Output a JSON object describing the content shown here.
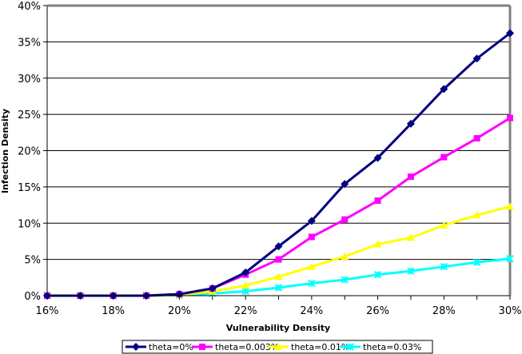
{
  "chart_data": {
    "type": "line",
    "title": "",
    "xlabel": "Vulnerability Density",
    "ylabel": "Infection Density",
    "x": [
      16,
      17,
      18,
      19,
      20,
      21,
      22,
      23,
      24,
      25,
      26,
      27,
      28,
      29,
      30
    ],
    "x_tick_labels": [
      "16%",
      "18%",
      "20%",
      "22%",
      "24%",
      "26%",
      "28%",
      "30%"
    ],
    "x_tick_values": [
      16,
      18,
      20,
      22,
      24,
      26,
      28,
      30
    ],
    "xlim": [
      16,
      30
    ],
    "y_tick_labels": [
      "0%",
      "5%",
      "10%",
      "15%",
      "20%",
      "25%",
      "30%",
      "35%",
      "40%"
    ],
    "y_tick_values": [
      0,
      5,
      10,
      15,
      20,
      25,
      30,
      35,
      40
    ],
    "ylim": [
      0,
      40
    ],
    "grid": "horizontal",
    "legend_position": "bottom",
    "series": [
      {
        "name": "theta=0%",
        "color": "#000080",
        "marker": "diamond",
        "values": [
          0,
          0,
          0,
          0,
          0.2,
          1.0,
          3.2,
          6.8,
          10.3,
          15.4,
          19.0,
          23.7,
          28.5,
          32.7,
          36.2
        ]
      },
      {
        "name": "theta=0.003%",
        "color": "#FF00FF",
        "marker": "square",
        "values": [
          0,
          0,
          0,
          0,
          0.2,
          1.0,
          2.9,
          5.0,
          8.1,
          10.5,
          13.1,
          16.4,
          19.1,
          21.7,
          24.5
        ]
      },
      {
        "name": "theta=0.01%",
        "color": "#FFFF00",
        "marker": "triangle",
        "values": [
          0,
          0,
          0,
          0,
          0.1,
          0.6,
          1.4,
          2.6,
          4.0,
          5.4,
          7.1,
          8.0,
          9.7,
          11.1,
          12.3
        ]
      },
      {
        "name": "theta=0.03%",
        "color": "#00FFFF",
        "marker": "x",
        "values": [
          0,
          0,
          0,
          0,
          0.05,
          0.3,
          0.6,
          1.1,
          1.7,
          2.2,
          2.9,
          3.4,
          4.0,
          4.6,
          5.1
        ]
      }
    ]
  }
}
